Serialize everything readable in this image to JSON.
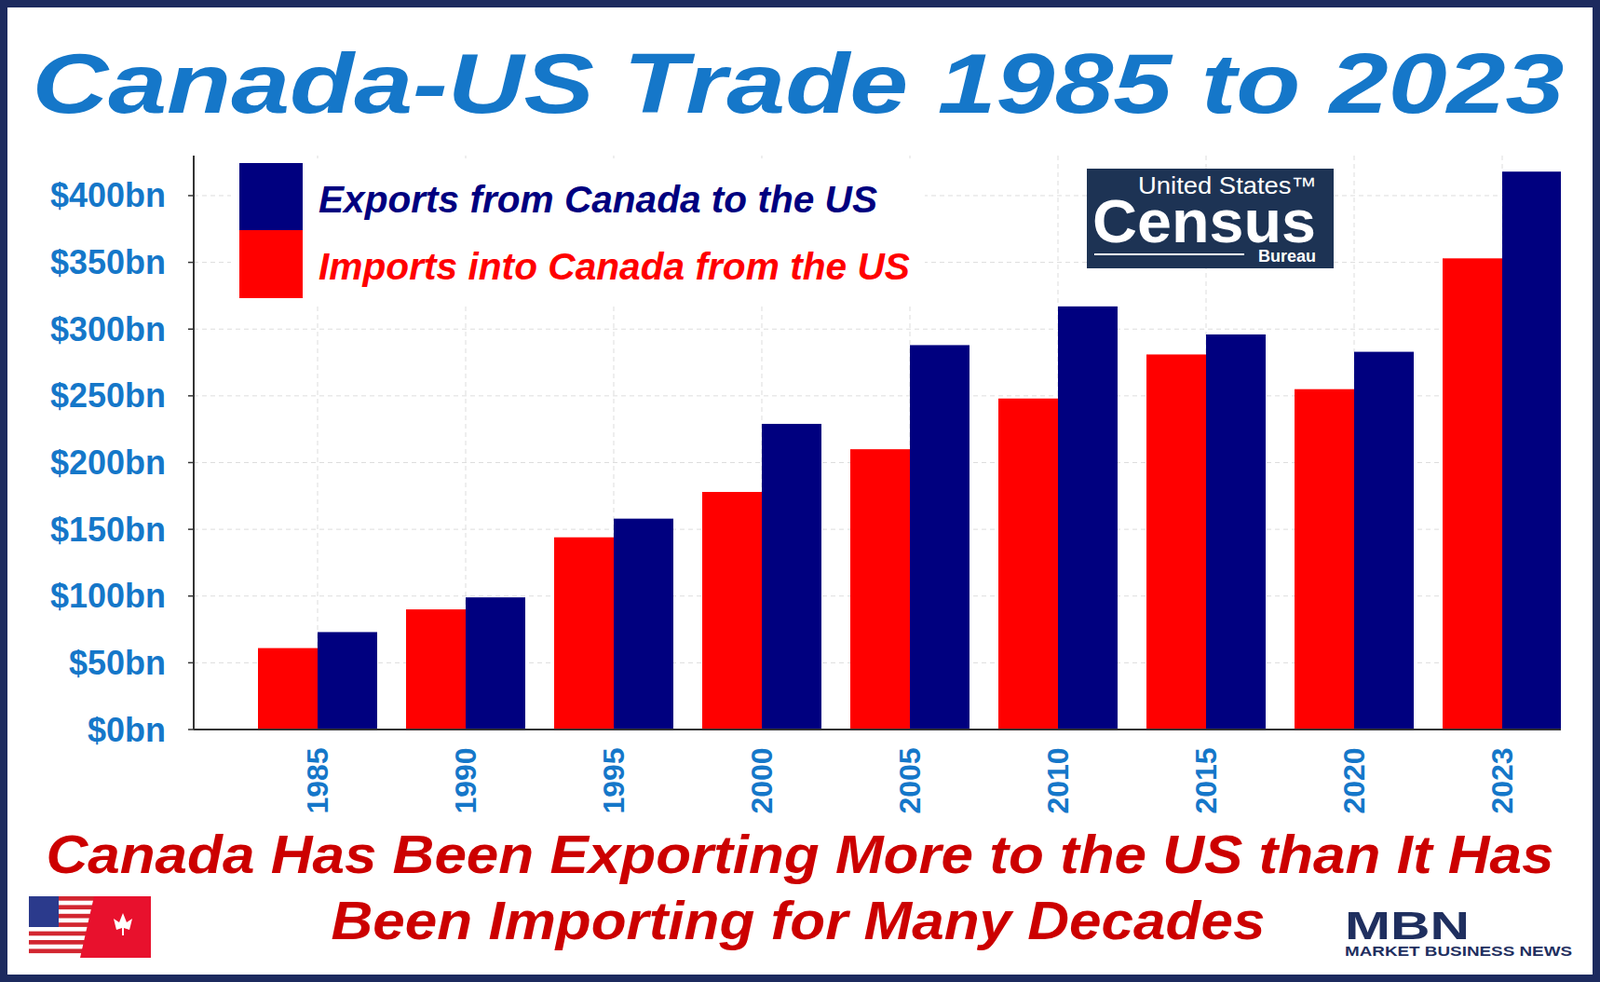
{
  "chart_data": {
    "type": "bar",
    "title": "Canada-US Trade 1985 to 2023",
    "categories": [
      "1985",
      "1990",
      "1995",
      "2000",
      "2005",
      "2010",
      "2015",
      "2020",
      "2023"
    ],
    "series": [
      {
        "name": "Exports from Canada to the US",
        "color": "#00007f",
        "values": [
          73,
          99,
          158,
          229,
          288,
          317,
          296,
          283,
          418
        ]
      },
      {
        "name": "Imports into Canada from the US",
        "color": "#ff0000",
        "values": [
          61,
          90,
          144,
          178,
          210,
          248,
          281,
          255,
          353
        ]
      }
    ],
    "ylim": [
      0,
      430
    ],
    "yticks": [
      {
        "value": 0,
        "label": "$0bn"
      },
      {
        "value": 50,
        "label": "$50bn"
      },
      {
        "value": 100,
        "label": "$100bn"
      },
      {
        "value": 150,
        "label": "$150bn"
      },
      {
        "value": 200,
        "label": "$200bn"
      },
      {
        "value": 250,
        "label": "$250bn"
      },
      {
        "value": 300,
        "label": "$300bn"
      },
      {
        "value": 350,
        "label": "$350bn"
      },
      {
        "value": 400,
        "label": "$400bn"
      }
    ],
    "grid": true,
    "legend": "top-left",
    "caption": [
      "Canada Has Been Exporting More to the US than It Has",
      "Been Importing for Many Decades"
    ],
    "census_logo": {
      "top": "United States™",
      "main": "Census",
      "bottom": "Bureau"
    },
    "mbn_logo": {
      "main": "MBN",
      "sub": "MARKET BUSINESS NEWS"
    }
  }
}
